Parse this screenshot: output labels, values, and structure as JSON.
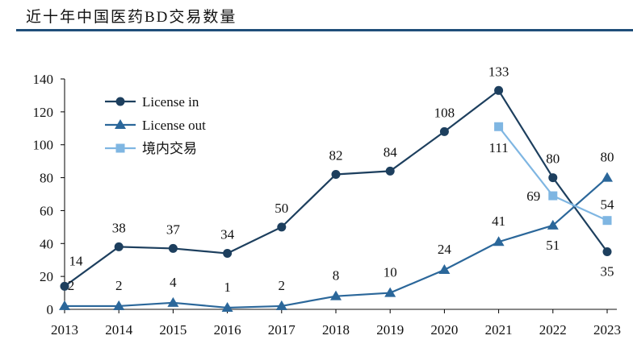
{
  "title": "近十年中国医药BD交易数量",
  "chart_data": {
    "type": "line",
    "title": "近十年中国医药BD交易数量",
    "x": [
      "2013",
      "2014",
      "2015",
      "2016",
      "2017",
      "2018",
      "2019",
      "2020",
      "2021",
      "2022",
      "2023"
    ],
    "ylim": [
      0,
      140
    ],
    "yticks": [
      0,
      20,
      40,
      60,
      80,
      100,
      120,
      140
    ],
    "grid": false,
    "legend_position": "top-left",
    "series": [
      {
        "name": "License in",
        "color": "#1d3f5e",
        "marker": "circle",
        "values": [
          14,
          38,
          37,
          34,
          50,
          82,
          84,
          108,
          133,
          80,
          35
        ]
      },
      {
        "name": "License out",
        "color": "#2b679a",
        "marker": "triangle",
        "values": [
          2,
          2,
          4,
          1,
          2,
          8,
          10,
          24,
          41,
          51,
          80
        ]
      },
      {
        "name": "境内交易",
        "color": "#7fb6e2",
        "marker": "square",
        "values": [
          null,
          null,
          null,
          null,
          null,
          null,
          null,
          null,
          111,
          69,
          54
        ]
      }
    ]
  }
}
